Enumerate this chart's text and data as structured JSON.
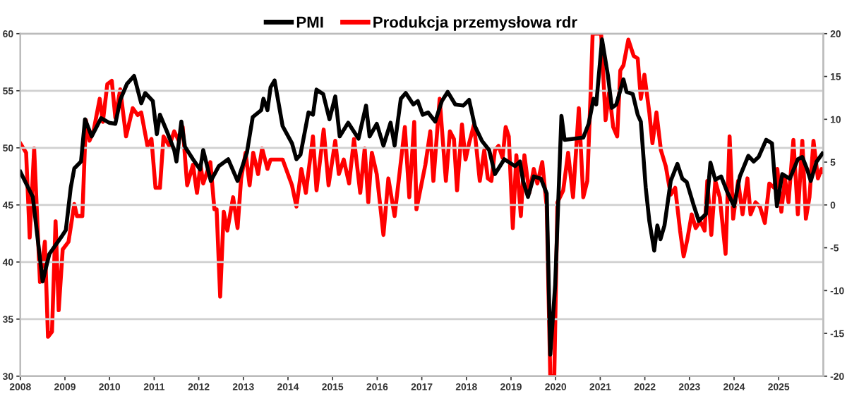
{
  "chart_data": {
    "type": "line",
    "legend": "top",
    "grid": "y",
    "marker": "none",
    "line_style": "solid",
    "xlim": [
      2008,
      2026
    ],
    "xticks": [
      2008,
      2009,
      2010,
      2011,
      2012,
      2013,
      2014,
      2015,
      2016,
      2017,
      2018,
      2019,
      2020,
      2021,
      2022,
      2023,
      2024,
      2025
    ],
    "ylim": [
      30,
      60
    ],
    "yticks": [
      30,
      35,
      40,
      45,
      50,
      55,
      60
    ],
    "y2lim": [
      -20,
      20
    ],
    "y2ticks": [
      -20,
      -15,
      -10,
      -5,
      0,
      5,
      10,
      15,
      20
    ],
    "series": [
      {
        "name": "Produkcja przemysłowa rdr",
        "color": "#ff0000",
        "axis": "y2",
        "x": [
          2008.0,
          2008.13,
          2008.21,
          2008.31,
          2008.44,
          2008.55,
          2008.62,
          2008.71,
          2008.79,
          2008.86,
          2008.95,
          2009.08,
          2009.21,
          2009.27,
          2009.39,
          2009.47,
          2009.55,
          2009.64,
          2009.78,
          2009.85,
          2009.95,
          2010.05,
          2010.13,
          2010.24,
          2010.37,
          2010.52,
          2010.63,
          2010.71,
          2010.85,
          2010.94,
          2011.03,
          2011.13,
          2011.21,
          2011.34,
          2011.45,
          2011.55,
          2011.64,
          2011.74,
          2011.87,
          2011.96,
          2012.04,
          2012.1,
          2012.26,
          2012.35,
          2012.4,
          2012.48,
          2012.56,
          2012.64,
          2012.77,
          2012.87,
          2012.95,
          2013.05,
          2013.14,
          2013.22,
          2013.33,
          2013.42,
          2013.54,
          2013.61,
          2013.7,
          2013.88,
          2014.09,
          2014.19,
          2014.3,
          2014.4,
          2014.56,
          2014.64,
          2014.8,
          2014.91,
          2015.06,
          2015.14,
          2015.25,
          2015.37,
          2015.48,
          2015.62,
          2015.72,
          2015.8,
          2015.88,
          2015.99,
          2016.14,
          2016.25,
          2016.39,
          2016.62,
          2016.72,
          2016.83,
          2016.88,
          2017.08,
          2017.19,
          2017.26,
          2017.4,
          2017.54,
          2017.63,
          2017.72,
          2017.79,
          2017.9,
          2017.98,
          2018.06,
          2018.17,
          2018.3,
          2018.4,
          2018.48,
          2018.56,
          2018.64,
          2018.72,
          2018.81,
          2018.88,
          2018.95,
          2019.04,
          2019.12,
          2019.22,
          2019.3,
          2019.41,
          2019.51,
          2019.59,
          2019.7,
          2019.8,
          2019.88,
          2019.97,
          2020.04,
          2020.17,
          2020.28,
          2020.39,
          2020.52,
          2020.62,
          2020.71,
          2020.78,
          2020.83,
          2020.94,
          2021.02,
          2021.12,
          2021.2,
          2021.29,
          2021.38,
          2021.45,
          2021.52,
          2021.63,
          2021.75,
          2021.84,
          2021.91,
          2021.99,
          2022.1,
          2022.17,
          2022.26,
          2022.36,
          2022.47,
          2022.58,
          2022.68,
          2022.79,
          2022.87,
          2022.95,
          2023.05,
          2023.14,
          2023.24,
          2023.34,
          2023.4,
          2023.49,
          2023.58,
          2023.68,
          2023.81,
          2023.9,
          2023.98,
          2024.09,
          2024.19,
          2024.3,
          2024.37,
          2024.48,
          2024.58,
          2024.69,
          2024.79,
          2024.9,
          2024.97,
          2025.06,
          2025.14,
          2025.22,
          2025.33,
          2025.43,
          2025.53,
          2025.61,
          2025.69,
          2025.78,
          2025.88,
          2025.96,
          2025.99
        ],
        "values": [
          7.2,
          6.1,
          -3.8,
          6.6,
          -9.0,
          -4.3,
          -15.4,
          -14.8,
          -1.9,
          -12.3,
          -5.2,
          -4.3,
          0.1,
          -1.3,
          -1.3,
          9.9,
          7.5,
          8.6,
          12.4,
          9.7,
          14.1,
          14.5,
          10.2,
          13.5,
          8.0,
          11.3,
          10.5,
          10.8,
          6.9,
          7.7,
          2.0,
          2.0,
          8.0,
          6.9,
          8.6,
          7.5,
          9.1,
          2.3,
          4.7,
          1.4,
          4.7,
          2.5,
          5.0,
          -0.5,
          -0.5,
          -10.7,
          -0.8,
          -3.0,
          0.9,
          -2.7,
          3.1,
          6.1,
          2.3,
          6.1,
          3.6,
          6.6,
          4.2,
          5.3,
          5.3,
          5.3,
          2.3,
          -0.2,
          4.2,
          1.4,
          8.0,
          1.7,
          8.8,
          2.3,
          7.5,
          3.6,
          5.3,
          2.5,
          7.7,
          1.4,
          6.6,
          0.3,
          6.1,
          3.6,
          -3.5,
          3.1,
          -1.3,
          9.1,
          0.9,
          9.7,
          -0.5,
          4.7,
          8.6,
          2.8,
          12.4,
          2.8,
          8.6,
          7.7,
          1.7,
          9.4,
          5.3,
          7.2,
          9.4,
          2.8,
          6.4,
          3.1,
          2.8,
          6.4,
          6.9,
          5.5,
          9.1,
          8.0,
          -2.7,
          5.8,
          -1.3,
          5.8,
          1.4,
          4.2,
          2.5,
          5.0,
          -0.2,
          -20.0,
          -20.0,
          0.3,
          1.7,
          6.1,
          0.9,
          11.3,
          0.9,
          2.8,
          12.4,
          20.0,
          20.0,
          20.0,
          9.9,
          13.2,
          9.1,
          8.0,
          15.7,
          16.3,
          19.3,
          17.4,
          17.1,
          12.4,
          15.2,
          10.8,
          7.2,
          10.8,
          6.4,
          4.5,
          1.2,
          2.0,
          -3.0,
          -6.0,
          -4.1,
          -1.1,
          -2.7,
          -1.9,
          -3.0,
          2.8,
          -3.5,
          2.8,
          0.9,
          -5.7,
          8.0,
          -1.6,
          2.8,
          -1.1,
          3.1,
          -1.1,
          0.3,
          -0.2,
          -2.1,
          2.5,
          2.0,
          4.2,
          -0.8,
          3.1,
          0.3,
          7.6,
          -1.1,
          7.5,
          -1.6,
          0.9,
          7.5,
          3.1,
          4.2,
          3.9
        ]
      },
      {
        "name": "PMI",
        "color": "#000000",
        "axis": "y",
        "x": [
          2008.0,
          2008.28,
          2008.5,
          2008.65,
          2008.92,
          2009.02,
          2009.13,
          2009.21,
          2009.36,
          2009.45,
          2009.6,
          2009.81,
          2009.99,
          2010.13,
          2010.24,
          2010.39,
          2010.55,
          2010.71,
          2010.8,
          2010.97,
          2011.06,
          2011.13,
          2011.29,
          2011.45,
          2011.5,
          2011.61,
          2011.69,
          2011.87,
          2012.03,
          2012.1,
          2012.27,
          2012.45,
          2012.66,
          2012.87,
          2013.08,
          2013.21,
          2013.4,
          2013.45,
          2013.54,
          2013.61,
          2013.7,
          2013.88,
          2014.09,
          2014.19,
          2014.28,
          2014.46,
          2014.56,
          2014.64,
          2014.79,
          2014.93,
          2015.06,
          2015.16,
          2015.35,
          2015.58,
          2015.75,
          2015.83,
          2015.99,
          2016.14,
          2016.3,
          2016.39,
          2016.53,
          2016.64,
          2016.81,
          2016.91,
          2017.02,
          2017.14,
          2017.3,
          2017.45,
          2017.58,
          2017.75,
          2017.93,
          2018.06,
          2018.19,
          2018.35,
          2018.51,
          2018.64,
          2018.85,
          2019.09,
          2019.2,
          2019.27,
          2019.38,
          2019.51,
          2019.67,
          2019.8,
          2019.88,
          2019.99,
          2020.13,
          2020.2,
          2020.62,
          2020.74,
          2020.85,
          2020.91,
          2021.04,
          2021.17,
          2021.26,
          2021.36,
          2021.52,
          2021.59,
          2021.73,
          2021.84,
          2021.91,
          2022.02,
          2022.1,
          2022.21,
          2022.28,
          2022.35,
          2022.44,
          2022.58,
          2022.73,
          2022.84,
          2022.94,
          2023.1,
          2023.21,
          2023.37,
          2023.47,
          2023.58,
          2023.71,
          2023.85,
          2024.0,
          2024.13,
          2024.32,
          2024.44,
          2024.55,
          2024.72,
          2024.85,
          2024.96,
          2025.08,
          2025.25,
          2025.43,
          2025.53,
          2025.64,
          2025.72,
          2025.85,
          2025.98
        ],
        "values": [
          47.9,
          45.7,
          38.3,
          40.7,
          42.2,
          42.8,
          46.5,
          48.2,
          48.8,
          52.5,
          51.0,
          52.6,
          52.2,
          52.1,
          54.2,
          55.6,
          56.3,
          53.9,
          54.8,
          54.1,
          51.2,
          52.9,
          51.4,
          49.8,
          48.8,
          52.3,
          50.1,
          49.0,
          48.1,
          49.8,
          47.1,
          48.4,
          49.0,
          47.1,
          49.6,
          52.7,
          53.3,
          54.3,
          53.3,
          55.3,
          55.9,
          51.9,
          50.4,
          49.0,
          49.4,
          53.1,
          52.9,
          55.1,
          54.7,
          52.5,
          54.5,
          51.0,
          52.2,
          50.8,
          53.7,
          51.0,
          52.1,
          50.2,
          52.2,
          50.2,
          54.3,
          54.8,
          53.8,
          54.1,
          52.9,
          53.1,
          52.3,
          54.1,
          54.9,
          53.8,
          53.7,
          54.2,
          51.9,
          50.6,
          49.8,
          47.7,
          49.0,
          48.4,
          48.8,
          47.1,
          45.7,
          47.5,
          47.3,
          46.0,
          31.9,
          38.0,
          52.8,
          50.7,
          50.9,
          52.1,
          54.3,
          53.8,
          59.5,
          56.4,
          53.5,
          53.8,
          56.0,
          54.9,
          54.7,
          52.9,
          52.3,
          46.5,
          43.6,
          41.0,
          43.2,
          42.0,
          43.2,
          47.1,
          48.6,
          47.3,
          47.0,
          44.9,
          43.6,
          44.2,
          48.7,
          47.2,
          47.5,
          46.1,
          44.9,
          47.5,
          49.3,
          48.8,
          49.2,
          50.7,
          50.4,
          44.9,
          47.7,
          47.3,
          49.0,
          49.2,
          48.1,
          47.1,
          48.8,
          49.5
        ]
      }
    ]
  }
}
